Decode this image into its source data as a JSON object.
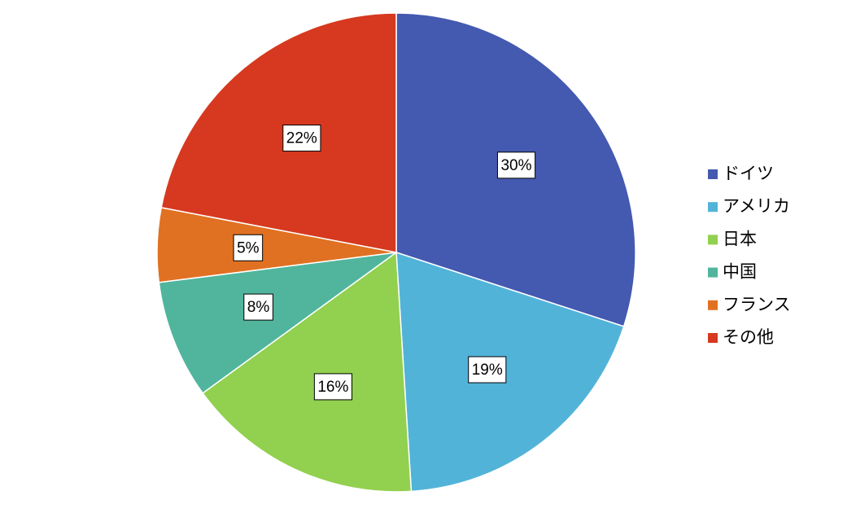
{
  "chart_data": {
    "type": "pie",
    "categories": [
      "ドイツ",
      "アメリカ",
      "日本",
      "中国",
      "フランス",
      "その他"
    ],
    "values": [
      30,
      19,
      16,
      8,
      5,
      22
    ],
    "value_labels": [
      "30%",
      "19%",
      "16%",
      "8%",
      "5%",
      "22%"
    ],
    "colors": [
      "#4459b0",
      "#52b3d9",
      "#92d04f",
      "#50b59c",
      "#e07122",
      "#d6391f"
    ],
    "legend": "right"
  }
}
